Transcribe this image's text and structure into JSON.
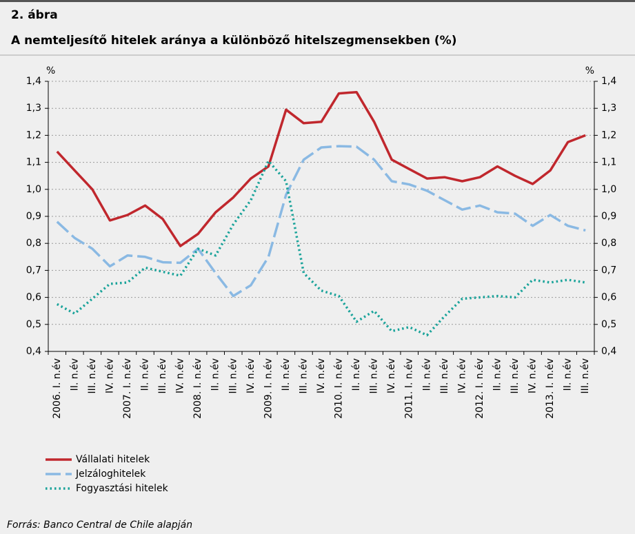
{
  "chart_data": {
    "type": "line",
    "label": "2. ábra",
    "title": "A nemteljesítő hitelek aránya a különböző hitelszegmensekben (%)",
    "y_unit": "%",
    "y2_unit": "%",
    "categories": [
      "2006. I. n.év",
      "II. n.év",
      "III. n.év",
      "IV. n.év",
      "2007. I. n.év",
      "II. n.év",
      "III. n.év",
      "IV. n.év",
      "2008. I. n.év",
      "II. n.év",
      "III. n.év",
      "IV. n.év",
      "2009. I. n.év",
      "II. n.év",
      "III. n.év",
      "IV. n.év",
      "2010. I. n.év",
      "II. n.év",
      "III. n.év",
      "IV. n.év",
      "2011. I. n.év",
      "II. n.év",
      "III. n.év",
      "IV. n.év",
      "2012. I. n.év",
      "II. n.év",
      "III. n.év",
      "IV. n.év",
      "2013. I. n.év",
      "II. n.év",
      "III. n.év"
    ],
    "series": [
      {
        "name": "Vállalati hitelek",
        "color": "#c0272d",
        "dash": "solid",
        "values": [
          1.14,
          1.07,
          1.0,
          0.885,
          0.905,
          0.94,
          0.89,
          0.79,
          0.835,
          0.915,
          0.97,
          1.04,
          1.085,
          1.295,
          1.245,
          1.25,
          1.355,
          1.36,
          1.25,
          1.11,
          1.075,
          1.04,
          1.045,
          1.03,
          1.045,
          1.085,
          1.05,
          1.02,
          1.07,
          1.175,
          1.2
        ]
      },
      {
        "name": "Jelzáloghitelek",
        "color": "#8ab9e3",
        "dash": "dashed",
        "values": [
          0.88,
          0.82,
          0.78,
          0.715,
          0.755,
          0.75,
          0.73,
          0.728,
          0.78,
          0.69,
          0.605,
          0.645,
          0.75,
          0.98,
          1.11,
          1.155,
          1.16,
          1.158,
          1.11,
          1.03,
          1.018,
          0.995,
          0.96,
          0.925,
          0.94,
          0.915,
          0.91,
          0.865,
          0.905,
          0.865,
          0.848
        ]
      },
      {
        "name": "Fogyasztási hitelek",
        "color": "#1aa39a",
        "dash": "dotted",
        "values": [
          0.575,
          0.54,
          0.595,
          0.65,
          0.655,
          0.71,
          0.695,
          0.68,
          0.78,
          0.755,
          0.87,
          0.96,
          1.105,
          1.03,
          0.69,
          0.625,
          0.605,
          0.51,
          0.55,
          0.475,
          0.49,
          0.46,
          0.53,
          0.595,
          0.6,
          0.605,
          0.6,
          0.665,
          0.655,
          0.665,
          0.655
        ]
      }
    ],
    "ylim": [
      0.4,
      1.4
    ],
    "yticks": [
      {
        "value": 0.4,
        "label": "0,4"
      },
      {
        "value": 0.5,
        "label": "0,5"
      },
      {
        "value": 0.6,
        "label": "0,6"
      },
      {
        "value": 0.7,
        "label": "0,7"
      },
      {
        "value": 0.8,
        "label": "0,8"
      },
      {
        "value": 0.9,
        "label": "0,9"
      },
      {
        "value": 1.0,
        "label": "1,0"
      },
      {
        "value": 1.1,
        "label": "1,1"
      },
      {
        "value": 1.2,
        "label": "1,2"
      },
      {
        "value": 1.3,
        "label": "1,3"
      },
      {
        "value": 1.4,
        "label": "1,4"
      }
    ],
    "y2lim": [
      0.4,
      1.4
    ],
    "y2ticks": [
      {
        "value": 0.4,
        "label": "0,4"
      },
      {
        "value": 0.5,
        "label": "0,5"
      },
      {
        "value": 0.6,
        "label": "0,6"
      },
      {
        "value": 0.7,
        "label": "0,7"
      },
      {
        "value": 0.8,
        "label": "0,8"
      },
      {
        "value": 0.9,
        "label": "0,9"
      },
      {
        "value": 1.0,
        "label": "1,0"
      },
      {
        "value": 1.1,
        "label": "1,1"
      },
      {
        "value": 1.2,
        "label": "1,2"
      },
      {
        "value": 1.3,
        "label": "1,3"
      },
      {
        "value": 1.4,
        "label": "1,4"
      }
    ],
    "grid": true,
    "source": "Forrás: Banco Central de Chile alapján"
  }
}
